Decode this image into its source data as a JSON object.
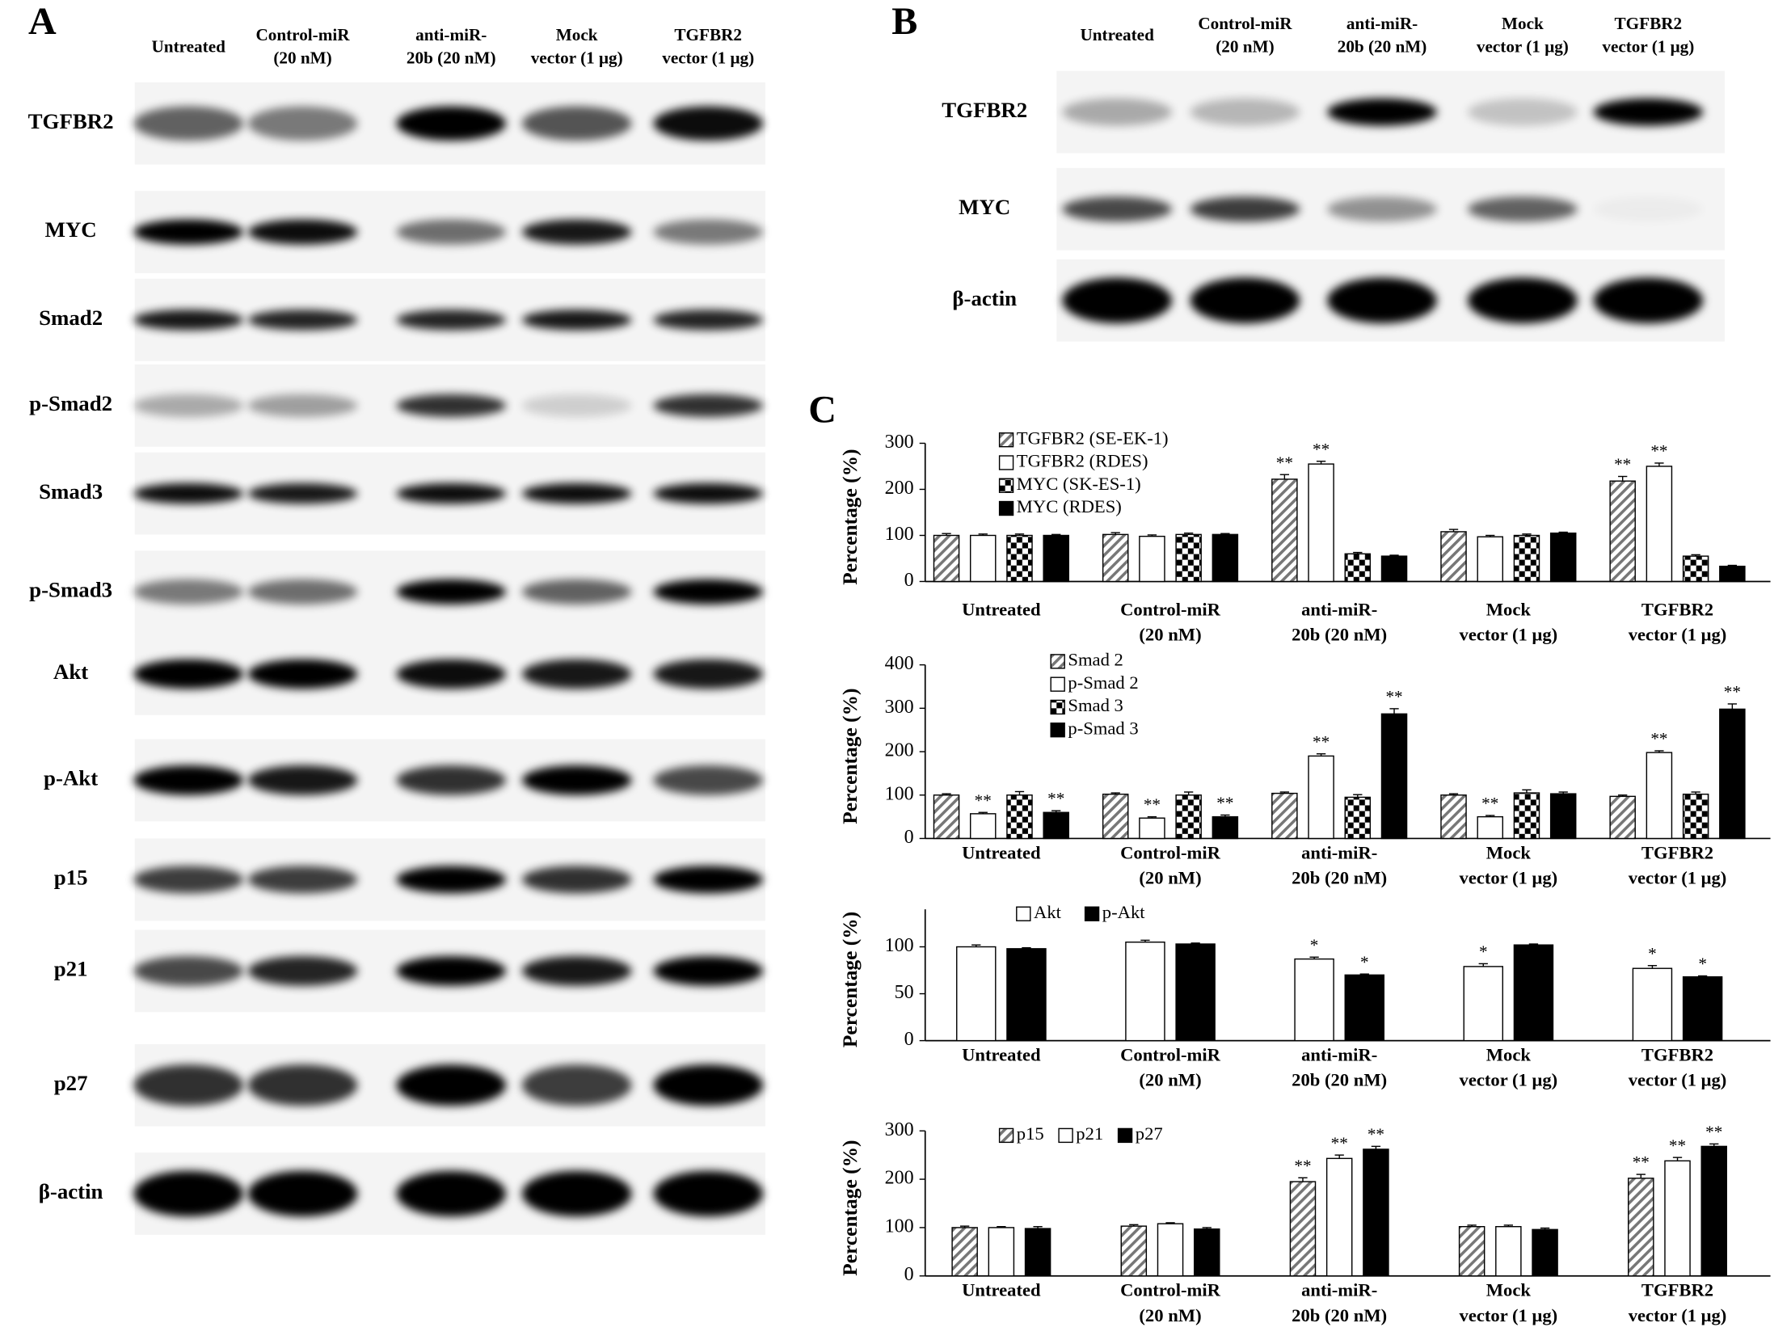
{
  "panel_a": {
    "label": "A",
    "lanes": [
      [
        "Untreated"
      ],
      [
        "Control-miR",
        "(20 nM)"
      ],
      [
        "anti-miR-",
        "20b (20 nM)"
      ],
      [
        "Mock",
        "vector (1 μg)"
      ],
      [
        "TGFBR2",
        "vector (1 μg)"
      ]
    ],
    "rows": [
      "TGFBR2",
      "MYC",
      "Smad2",
      "p-Smad2",
      "Smad3",
      "p-Smad3",
      "Akt",
      "p-Akt",
      "p15",
      "p21",
      "p27",
      "β-actin"
    ]
  },
  "panel_b": {
    "label": "B",
    "lanes": [
      [
        "Untreated"
      ],
      [
        "Control-miR",
        "(20 nM)"
      ],
      [
        "anti-miR-",
        "20b (20 nM)"
      ],
      [
        "Mock",
        "vector (1 μg)"
      ],
      [
        "TGFBR2",
        "vector (1 μg)"
      ]
    ],
    "rows": [
      "TGFBR2",
      "MYC",
      "β-actin"
    ]
  },
  "panel_c": {
    "label": "C"
  },
  "chart_data": [
    {
      "type": "bar",
      "ylabel": "Percentage  (%)",
      "ylim": [
        0,
        300
      ],
      "yticks": [
        0,
        100,
        200,
        300
      ],
      "legend": "top-left-vertical",
      "categories": [
        [
          "Untreated"
        ],
        [
          "Control-miR",
          "(20 nM)"
        ],
        [
          "anti-miR-",
          "20b (20 nM)"
        ],
        [
          "Mock",
          "vector (1 μg)"
        ],
        [
          "TGFBR2",
          "vector (1 μg)"
        ]
      ],
      "series": [
        {
          "name": "TGFBR2 (SE-EK-1)",
          "pattern": "hatch",
          "values": [
            100,
            102,
            222,
            108,
            218
          ],
          "errors": [
            4,
            4,
            10,
            5,
            10
          ],
          "significance": [
            null,
            null,
            "**",
            null,
            "**"
          ]
        },
        {
          "name": "TGFBR2 (RDES)",
          "pattern": "white",
          "values": [
            100,
            98,
            255,
            97,
            250
          ],
          "errors": [
            3,
            3,
            6,
            3,
            7
          ],
          "significance": [
            null,
            null,
            "**",
            null,
            "**"
          ]
        },
        {
          "name": "MYC (SK-ES-1)",
          "pattern": "checker",
          "values": [
            100,
            102,
            60,
            100,
            55
          ],
          "errors": [
            3,
            3,
            3,
            3,
            3
          ],
          "significance": [
            null,
            null,
            null,
            null,
            null
          ]
        },
        {
          "name": "MYC (RDES)",
          "pattern": "black",
          "values": [
            100,
            102,
            55,
            105,
            33
          ],
          "errors": [
            2,
            2,
            2,
            2,
            2
          ],
          "significance": [
            null,
            null,
            null,
            null,
            null
          ]
        }
      ]
    },
    {
      "type": "bar",
      "ylabel": "Percentage  (%)",
      "ylim": [
        0,
        400
      ],
      "yticks": [
        0,
        100,
        200,
        300,
        400
      ],
      "legend": "top-left-vertical",
      "categories": [
        [
          "Untreated"
        ],
        [
          "Control-miR",
          "(20 nM)"
        ],
        [
          "anti-miR-",
          "20b (20 nM)"
        ],
        [
          "Mock",
          "vector (1 μg)"
        ],
        [
          "TGFBR2",
          "vector (1 μg)"
        ]
      ],
      "series": [
        {
          "name": "Smad 2",
          "pattern": "hatch",
          "values": [
            100,
            102,
            104,
            100,
            97
          ],
          "errors": [
            3,
            3,
            3,
            3,
            3
          ],
          "significance": [
            null,
            null,
            null,
            null,
            null
          ]
        },
        {
          "name": "p-Smad 2",
          "pattern": "white",
          "values": [
            57,
            47,
            190,
            50,
            198
          ],
          "errors": [
            3,
            3,
            5,
            3,
            4
          ],
          "significance": [
            "**",
            "**",
            "**",
            "**",
            "**"
          ]
        },
        {
          "name": "Smad 3",
          "pattern": "checker",
          "values": [
            100,
            100,
            95,
            105,
            102
          ],
          "errors": [
            8,
            7,
            6,
            7,
            5
          ],
          "significance": [
            null,
            null,
            null,
            null,
            null
          ]
        },
        {
          "name": "p-Smad 3",
          "pattern": "black",
          "values": [
            60,
            50,
            287,
            103,
            298
          ],
          "errors": [
            4,
            4,
            12,
            4,
            12
          ],
          "significance": [
            "**",
            "**",
            "**",
            null,
            "**"
          ]
        }
      ]
    },
    {
      "type": "bar",
      "ylabel": "Percentage  (%)",
      "ylim": [
        0,
        140
      ],
      "yticks": [
        0,
        50,
        100
      ],
      "legend": "top-left-horizontal",
      "categories": [
        [
          "Untreated"
        ],
        [
          "Control-miR",
          "(20 nM)"
        ],
        [
          "anti-miR-",
          "20b (20 nM)"
        ],
        [
          "Mock",
          "vector (1 μg)"
        ],
        [
          "TGFBR2",
          "vector (1 μg)"
        ]
      ],
      "series": [
        {
          "name": "Akt",
          "pattern": "white",
          "values": [
            100,
            105,
            87,
            79,
            77
          ],
          "errors": [
            2,
            2,
            2,
            3,
            3
          ],
          "significance": [
            null,
            null,
            "*",
            "*",
            "*"
          ]
        },
        {
          "name": "p-Akt",
          "pattern": "black",
          "values": [
            98,
            103,
            70,
            102,
            68
          ],
          "errors": [
            1,
            1,
            1,
            1,
            1
          ],
          "significance": [
            null,
            null,
            "*",
            null,
            "*"
          ]
        }
      ]
    },
    {
      "type": "bar",
      "ylabel": "Percentage  (%)",
      "ylim": [
        0,
        300
      ],
      "yticks": [
        0,
        100,
        200,
        300
      ],
      "legend": "top-left-horizontal",
      "categories": [
        [
          "Untreated"
        ],
        [
          "Control-miR",
          "(20 nM)"
        ],
        [
          "anti-miR-",
          "20b (20 nM)"
        ],
        [
          "Mock",
          "vector (1 μg)"
        ],
        [
          "TGFBR2",
          "vector (1 μg)"
        ]
      ],
      "series": [
        {
          "name": "p15",
          "pattern": "hatch",
          "values": [
            100,
            103,
            195,
            102,
            202
          ],
          "errors": [
            3,
            3,
            8,
            3,
            8
          ],
          "significance": [
            null,
            null,
            "**",
            null,
            "**"
          ]
        },
        {
          "name": "p21",
          "pattern": "white",
          "values": [
            100,
            108,
            243,
            102,
            238
          ],
          "errors": [
            2,
            2,
            7,
            3,
            7
          ],
          "significance": [
            null,
            null,
            "**",
            null,
            "**"
          ]
        },
        {
          "name": "p27",
          "pattern": "black",
          "values": [
            98,
            97,
            262,
            96,
            268
          ],
          "errors": [
            4,
            3,
            6,
            3,
            5
          ],
          "significance": [
            null,
            null,
            "**",
            null,
            "**"
          ]
        }
      ]
    }
  ]
}
